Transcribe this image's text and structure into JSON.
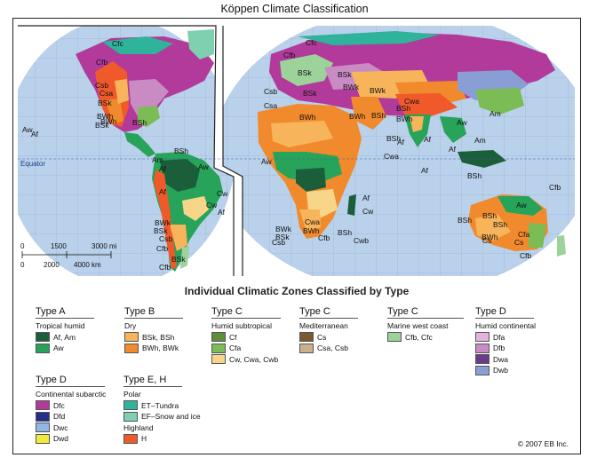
{
  "title": "Köppen Climate Classification",
  "map": {
    "equator_label": "Equator",
    "ocean_color": "#b9d1ea",
    "labels": [
      "Cfc",
      "Cfb",
      "Csb",
      "Csa",
      "BSk",
      "BWh",
      "BWh",
      "BSk",
      "BSh",
      "Aw",
      "Af",
      "Am",
      "BSh",
      "Af",
      "Aw",
      "Af",
      "Cw",
      "Af",
      "Cw",
      "BWk",
      "BSk",
      "Csb",
      "Cfb",
      "BSk",
      "Cfb",
      "Cfc",
      "Cfb",
      "BSk",
      "Csb",
      "Csa",
      "BSk",
      "BSk",
      "BWk",
      "BWk",
      "BSh",
      "BWh",
      "BWh",
      "BSh",
      "BWh",
      "Cwa",
      "Am",
      "Aw",
      "Af",
      "Af",
      "Am",
      "Aw",
      "Cwa",
      "Af",
      "Af",
      "BSh",
      "Cwa",
      "BSh",
      "BWk",
      "BSk",
      "Csb",
      "BWh",
      "Cfb",
      "BSh",
      "Cwb",
      "Af",
      "Cw",
      "BSh",
      "BSh",
      "BSh",
      "BWh",
      "Aw",
      "Cs",
      "Cs",
      "Cfa",
      "Cfb",
      "Cfb"
    ],
    "scale": {
      "mi_ticks": [
        "0",
        "1500",
        "3000 mi"
      ],
      "km_ticks": [
        "0",
        "2000",
        "4000 km"
      ]
    }
  },
  "legend": {
    "title": "Individual Climatic Zones Classified by Type",
    "groups": [
      {
        "type": "Type A",
        "sub": "Tropical humid",
        "items": [
          {
            "label": "Af, Am",
            "color": "#1b5e3a"
          },
          {
            "label": "Aw",
            "color": "#27a35a"
          }
        ]
      },
      {
        "type": "Type B",
        "sub": "Dry",
        "items": [
          {
            "label": "BSk, BSh",
            "color": "#f7b45a"
          },
          {
            "label": "BWh, BWk",
            "color": "#f08a2c"
          }
        ]
      },
      {
        "type": "Type C",
        "sub": "Humid subtropical",
        "items": [
          {
            "label": "Cf",
            "color": "#5f8f3a"
          },
          {
            "label": "Cfa",
            "color": "#7cbc55"
          },
          {
            "label": "Cw, Cwa, Cwb",
            "color": "#f7d68a"
          }
        ]
      },
      {
        "type": "Type C",
        "sub": "Mediterranean",
        "items": [
          {
            "label": "Cs",
            "color": "#7a5a2f"
          },
          {
            "label": "Csa, Csb",
            "color": "#c9b08a"
          }
        ]
      },
      {
        "type": "Type C",
        "sub": "Marine west coast",
        "items": [
          {
            "label": "Cfb, Cfc",
            "color": "#9bd39a"
          }
        ]
      },
      {
        "type": "Type D",
        "sub": "Humid continental",
        "items": [
          {
            "label": "Dfa",
            "color": "#e3b3dd"
          },
          {
            "label": "Dfb",
            "color": "#c98bc4"
          },
          {
            "label": "Dwa",
            "color": "#6a3a8c"
          },
          {
            "label": "Dwb",
            "color": "#8a9ed6"
          }
        ]
      },
      {
        "type": "Type D",
        "sub": "Continental subarctic",
        "items": [
          {
            "label": "Dfc",
            "color": "#b23a9a"
          },
          {
            "label": "Dfd",
            "color": "#232e8c"
          },
          {
            "label": "Dwc",
            "color": "#8fb6e6"
          },
          {
            "label": "Dwd",
            "color": "#f2ea3a"
          }
        ]
      },
      {
        "type": "Type E, H",
        "sub": "Polar",
        "items": [
          {
            "label": "ET–Tundra",
            "color": "#2fb39a"
          },
          {
            "label": "EF–Snow and ice",
            "color": "#7fd0b0"
          }
        ],
        "sub2": "Highland",
        "items2": [
          {
            "label": "H",
            "color": "#f05a2a"
          }
        ]
      }
    ]
  },
  "copyright": "© 2007 EB Inc."
}
